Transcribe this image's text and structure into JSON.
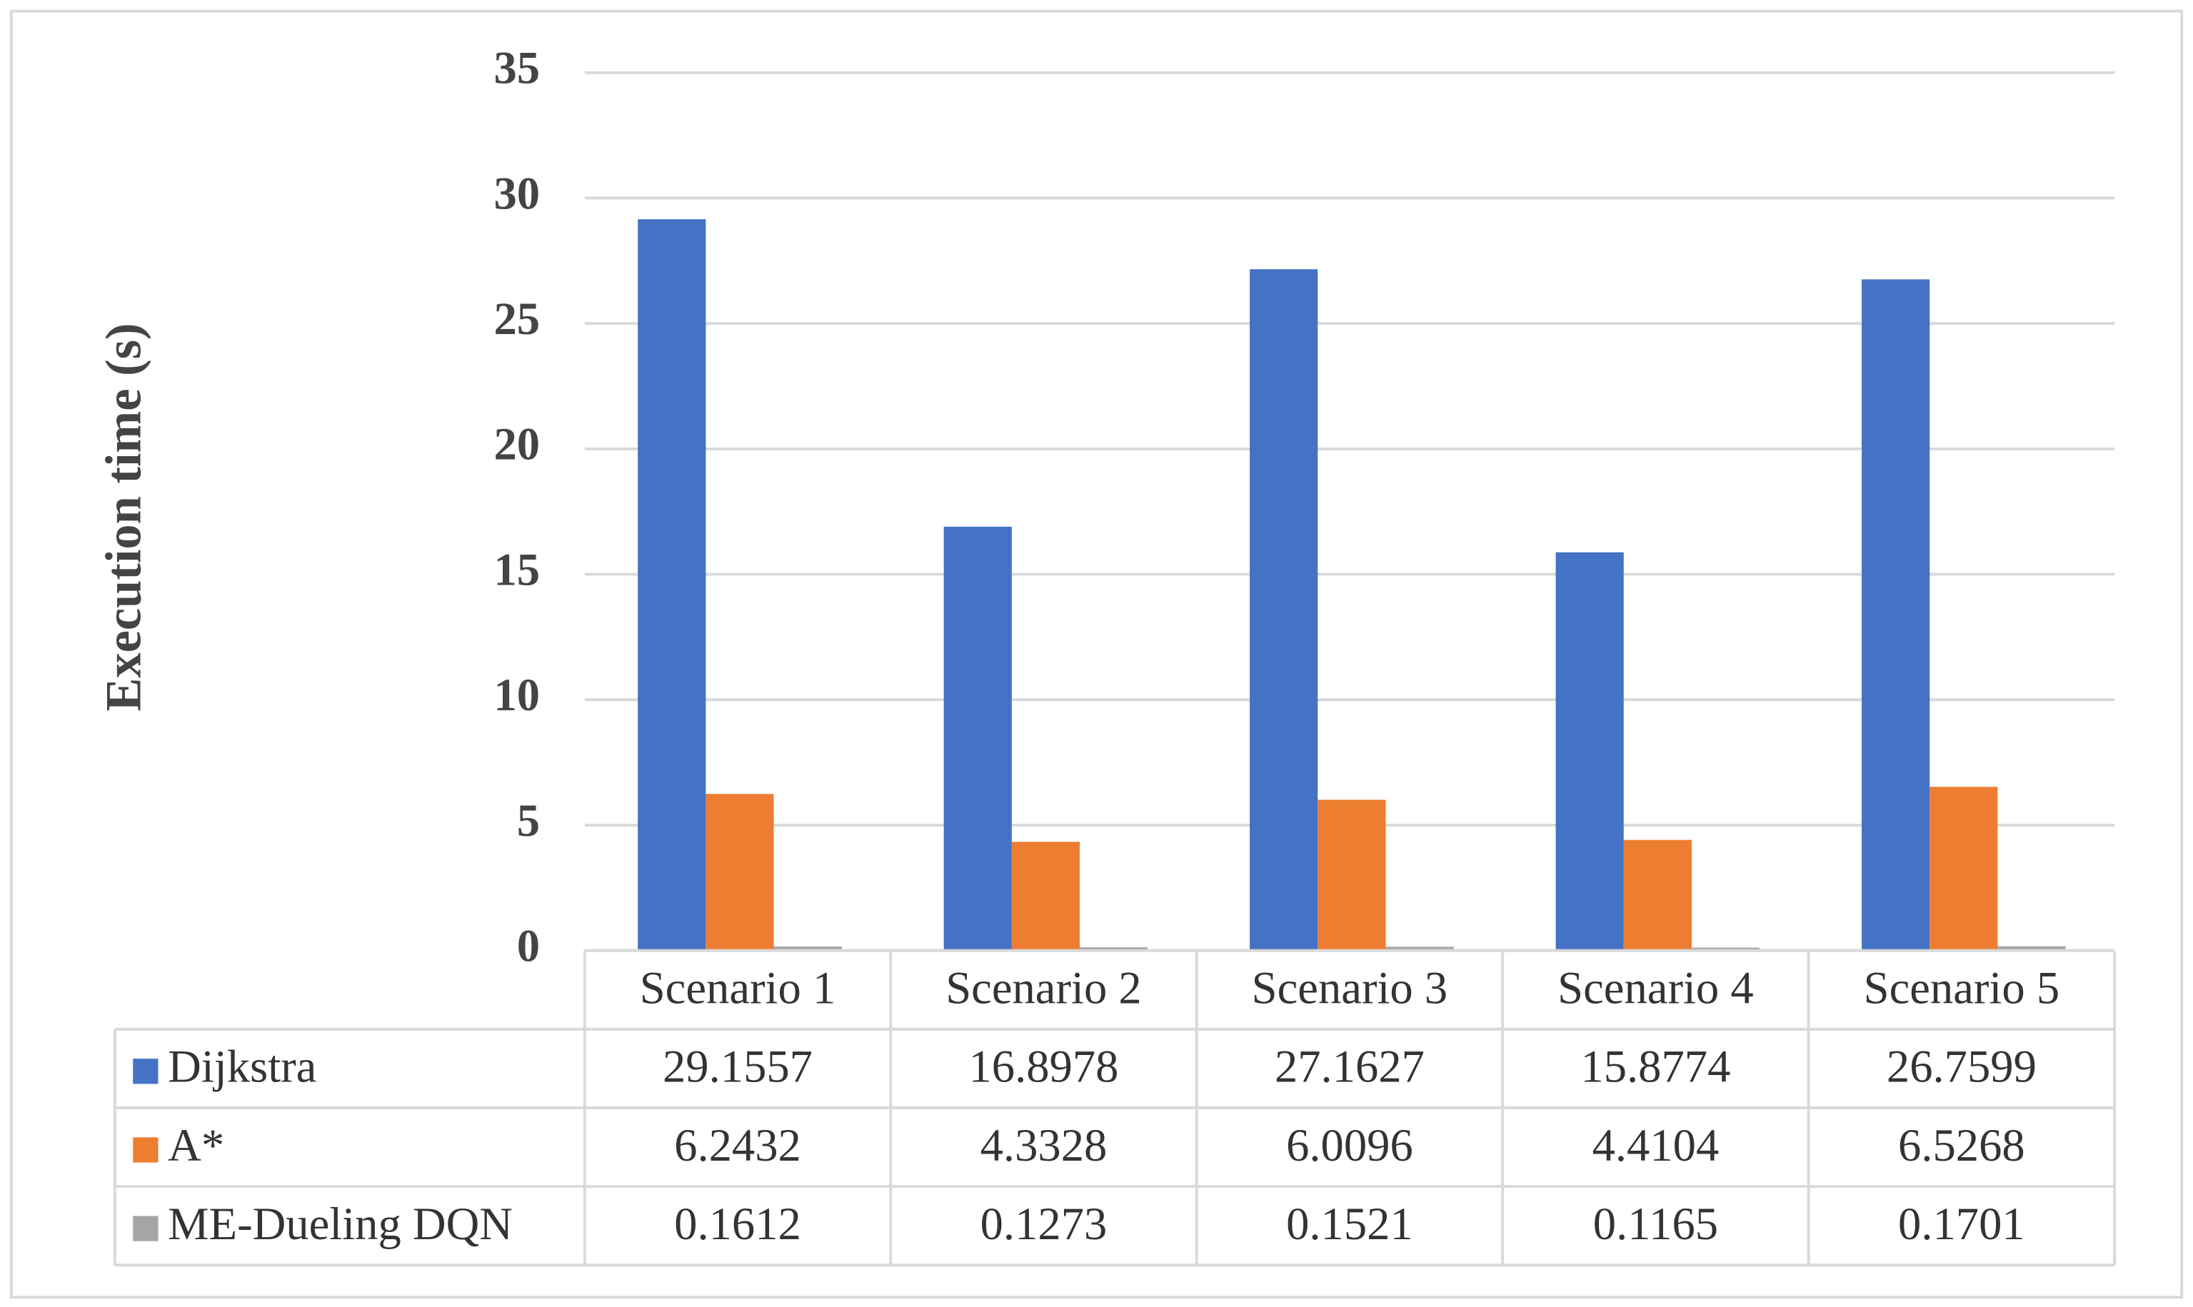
{
  "chart_data": {
    "type": "bar",
    "y_label": "Execution  time (s)",
    "categories": [
      "Scenario 1",
      "Scenario 2",
      "Scenario 3",
      "Scenario 4",
      "Scenario 5"
    ],
    "series": [
      {
        "name": "Dijkstra",
        "color": "#4472c4",
        "values": [
          29.1557,
          16.8978,
          27.1627,
          15.8774,
          26.7599
        ]
      },
      {
        "name": "A*",
        "color": "#ed7d31",
        "values": [
          6.2432,
          4.3328,
          6.0096,
          4.4104,
          6.5268
        ]
      },
      {
        "name": "ME-Dueling DQN",
        "color": "#a5a5a5",
        "values": [
          0.1612,
          0.1273,
          0.1521,
          0.1165,
          0.1701
        ]
      }
    ],
    "ylim": [
      0,
      35
    ],
    "yticks": [
      0,
      5,
      10,
      15,
      20,
      25,
      30,
      35
    ],
    "grid": true,
    "data_table": true
  }
}
